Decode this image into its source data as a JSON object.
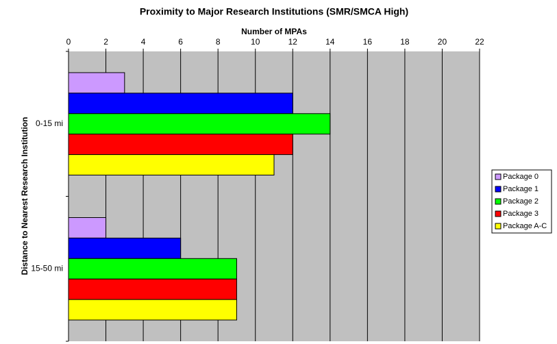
{
  "chart_data": {
    "type": "barh",
    "title": "Proximity to Major Research Institutions (SMR/SMCA High)",
    "x_label": "Number of MPAs",
    "y_label": "Distance to Nearest Research Institution",
    "categories": [
      "0-15 mi",
      "15-50 mi"
    ],
    "series": [
      {
        "name": "Package 0",
        "color": "#cc99ff",
        "values": [
          3,
          2
        ]
      },
      {
        "name": "Package 1",
        "color": "#0000ff",
        "values": [
          12,
          6
        ]
      },
      {
        "name": "Package 2",
        "color": "#00ff00",
        "values": [
          14,
          9
        ]
      },
      {
        "name": "Package 3",
        "color": "#ff0000",
        "values": [
          12,
          9
        ]
      },
      {
        "name": "Package A-C",
        "color": "#ffff00",
        "values": [
          11,
          9
        ]
      }
    ],
    "xlim": [
      0,
      22
    ],
    "xticks": [
      0,
      2,
      4,
      6,
      8,
      10,
      12,
      14,
      16,
      18,
      20,
      22
    ],
    "grid": true,
    "legend": "right",
    "plot_background": "#c0c0c0"
  }
}
